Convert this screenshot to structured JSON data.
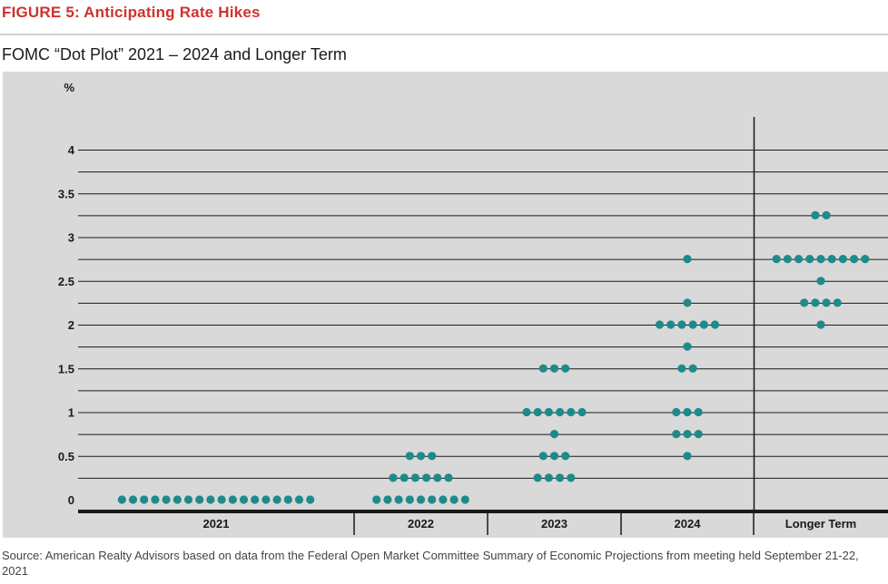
{
  "figure_label": "FIGURE 5: Anticipating Rate Hikes",
  "source": "Source: American Realty Advisors based on data from the Federal Open Market Committee Summary of Economic Projections from meeting held September 21-22, 2021",
  "colors": {
    "dot": "#1f8a8a",
    "label": "#d0312d",
    "plot_background": "#d9d9d9"
  },
  "chart_data": {
    "type": "scatter",
    "title": "FOMC “Dot Plot” 2021 – 2024 and Longer Term",
    "ylabel": "%",
    "ylim": [
      0,
      4.25
    ],
    "yticks": [
      {
        "value": 4,
        "label": "4"
      },
      {
        "value": 3.5,
        "label": "3.5"
      },
      {
        "value": 3,
        "label": "3"
      },
      {
        "value": 2.5,
        "label": "2.5"
      },
      {
        "value": 2,
        "label": "2"
      },
      {
        "value": 1.5,
        "label": "1.5"
      },
      {
        "value": 1,
        "label": "1"
      },
      {
        "value": 0.5,
        "label": "0.5"
      },
      {
        "value": 0,
        "label": "0"
      }
    ],
    "grid": true,
    "categories": [
      "2021",
      "2022",
      "2023",
      "2024",
      "Longer Term"
    ],
    "dots": [
      {
        "category": "2021",
        "points": [
          {
            "rate": 0.0,
            "count": 18
          }
        ]
      },
      {
        "category": "2022",
        "points": [
          {
            "rate": 0.0,
            "count": 9
          },
          {
            "rate": 0.25,
            "count": 6
          },
          {
            "rate": 0.5,
            "count": 3
          }
        ]
      },
      {
        "category": "2023",
        "points": [
          {
            "rate": 0.25,
            "count": 4
          },
          {
            "rate": 0.5,
            "count": 3
          },
          {
            "rate": 0.75,
            "count": 1
          },
          {
            "rate": 1.0,
            "count": 6
          },
          {
            "rate": 1.5,
            "count": 3
          }
        ]
      },
      {
        "category": "2024",
        "points": [
          {
            "rate": 0.5,
            "count": 1
          },
          {
            "rate": 0.75,
            "count": 3
          },
          {
            "rate": 1.0,
            "count": 3
          },
          {
            "rate": 1.5,
            "count": 2
          },
          {
            "rate": 1.75,
            "count": 1
          },
          {
            "rate": 2.0,
            "count": 6
          },
          {
            "rate": 2.25,
            "count": 1
          },
          {
            "rate": 2.75,
            "count": 1
          }
        ]
      },
      {
        "category": "Longer Term",
        "points": [
          {
            "rate": 2.0,
            "count": 1
          },
          {
            "rate": 2.25,
            "count": 4
          },
          {
            "rate": 2.5,
            "count": 1
          },
          {
            "rate": 2.75,
            "count": 9
          },
          {
            "rate": 3.25,
            "count": 2
          }
        ]
      }
    ]
  }
}
